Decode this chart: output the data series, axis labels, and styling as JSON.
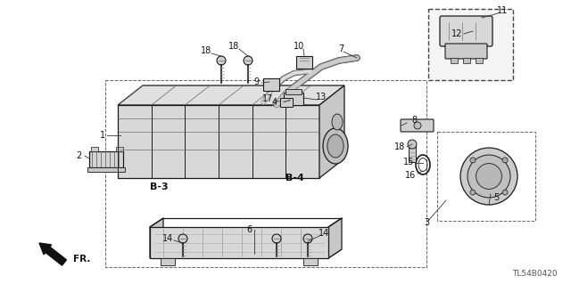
{
  "background_color": "#ffffff",
  "figsize": [
    6.4,
    3.19
  ],
  "dpi": 100,
  "diagram_code": "TL54B0420",
  "label_fontsize": 7.0,
  "bold_label_fontsize": 8.0,
  "line_color": "#1a1a1a",
  "label_color": "#111111"
}
